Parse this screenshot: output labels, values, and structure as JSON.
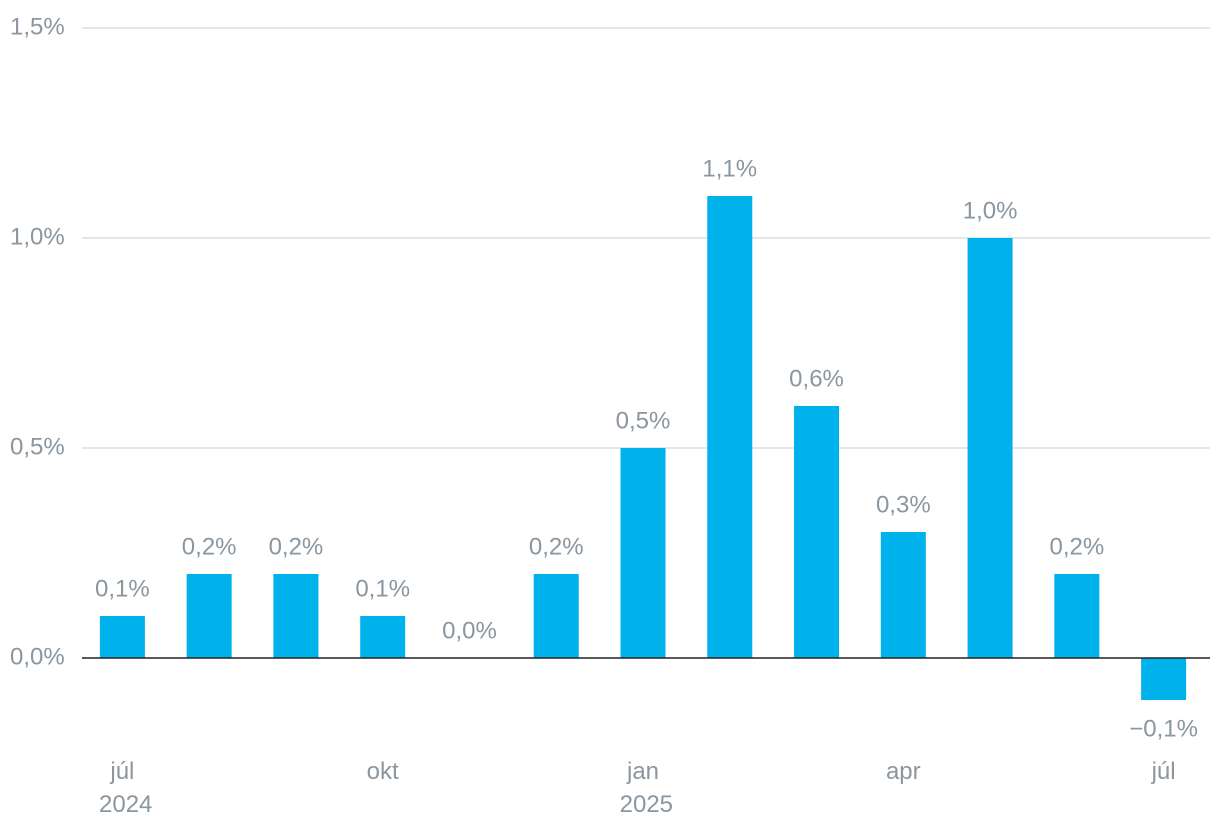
{
  "chart_data": {
    "type": "bar",
    "categories": [
      "júl 2024",
      null,
      null,
      "okt",
      null,
      null,
      "jan 2025",
      null,
      null,
      "apr",
      null,
      null,
      "júl"
    ],
    "values": [
      0.1,
      0.2,
      0.2,
      0.1,
      0.0,
      0.2,
      0.5,
      1.1,
      0.6,
      0.3,
      1.0,
      0.2,
      -0.1
    ],
    "value_labels": [
      "0,1%",
      "0,2%",
      "0,2%",
      "0,1%",
      "0,0%",
      "0,2%",
      "0,5%",
      "1,1%",
      "0,6%",
      "0,3%",
      "1,0%",
      "0,2%",
      "−0,1%"
    ],
    "color": "#00b2ec",
    "ylim": [
      -0.2,
      1.5
    ],
    "yticks": [
      {
        "value": 0,
        "label": "0,0%"
      },
      {
        "value": 0.5,
        "label": "0,5%"
      },
      {
        "value": 1.0,
        "label": "1,0%"
      },
      {
        "value": 1.5,
        "label": "1,5%"
      }
    ],
    "grid": true
  }
}
